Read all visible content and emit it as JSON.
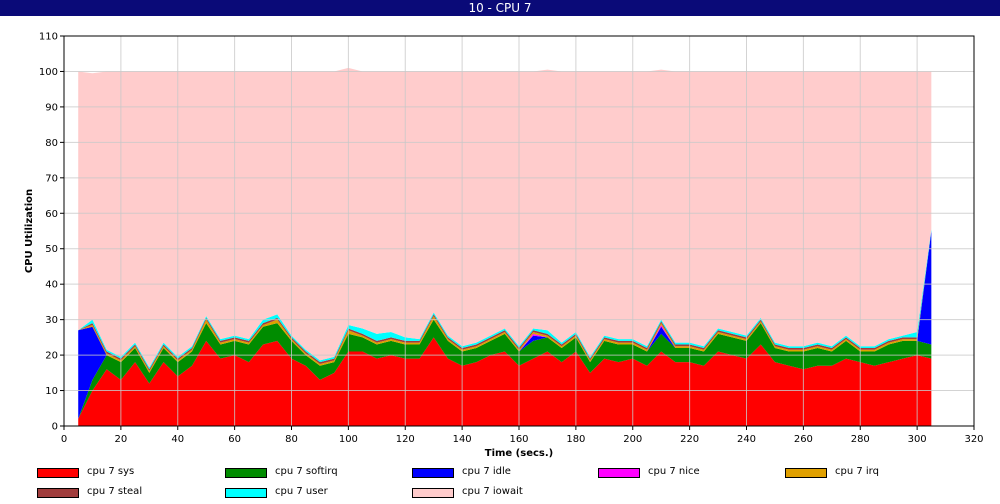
{
  "window": {
    "title": "10 - CPU 7"
  },
  "chart_data": {
    "type": "area",
    "stacked": true,
    "title": "10 - CPU 7",
    "xlabel": "Time (secs.)",
    "ylabel": "CPU Utilization",
    "xlim": [
      0,
      320
    ],
    "ylim": [
      0,
      110
    ],
    "xticks": [
      0,
      20,
      40,
      60,
      80,
      100,
      120,
      140,
      160,
      180,
      200,
      220,
      240,
      260,
      280,
      300,
      320
    ],
    "yticks": [
      0,
      10,
      20,
      30,
      40,
      50,
      60,
      70,
      80,
      90,
      100,
      110
    ],
    "grid": true,
    "legend_position": "bottom",
    "x": [
      5,
      10,
      15,
      20,
      25,
      30,
      35,
      40,
      45,
      50,
      55,
      60,
      65,
      70,
      75,
      80,
      85,
      90,
      95,
      100,
      105,
      110,
      115,
      120,
      125,
      130,
      135,
      140,
      145,
      150,
      155,
      160,
      165,
      170,
      175,
      180,
      185,
      190,
      195,
      200,
      205,
      210,
      215,
      220,
      225,
      230,
      235,
      240,
      245,
      250,
      255,
      260,
      265,
      270,
      275,
      280,
      285,
      290,
      295,
      300,
      305
    ],
    "series": [
      {
        "name": "cpu 7 sys",
        "color": "#ff0000",
        "values": [
          2,
          10,
          16,
          13,
          18,
          12,
          18,
          14,
          17,
          24,
          19,
          20,
          18,
          23,
          24,
          19,
          17,
          13,
          15,
          21,
          21,
          19,
          20,
          19,
          19,
          25,
          19,
          17,
          18,
          20,
          21,
          17,
          19,
          21,
          18,
          21,
          15,
          19,
          18,
          19,
          17,
          21,
          18,
          18,
          17,
          21,
          20,
          19,
          23,
          18,
          17,
          16,
          17,
          17,
          19,
          18,
          17,
          18,
          19,
          20,
          19
        ]
      },
      {
        "name": "cpu 7 softirq",
        "color": "#008c00",
        "values": [
          0,
          3,
          4,
          5,
          4,
          3,
          4,
          4,
          4,
          5,
          4,
          4,
          5,
          5,
          5,
          5,
          3,
          4,
          3,
          5,
          4,
          4,
          4,
          4,
          4,
          5,
          5,
          4,
          4,
          4,
          5,
          4,
          5,
          4,
          4,
          4,
          3,
          5,
          5,
          4,
          4,
          5,
          4,
          4,
          4,
          5,
          5,
          5,
          6,
          4,
          4,
          5,
          5,
          4,
          5,
          3,
          4,
          5,
          5,
          4,
          4
        ]
      },
      {
        "name": "cpu 7 idle",
        "color": "#0000ff",
        "values": [
          25,
          15,
          0,
          0,
          0,
          0,
          0,
          0,
          0,
          0,
          0,
          0,
          0,
          0,
          0,
          0,
          0,
          0,
          0,
          0,
          0,
          0,
          0,
          0,
          0,
          0,
          0,
          0,
          0,
          0,
          0,
          0,
          1.5,
          0,
          0,
          0,
          0,
          0,
          0,
          0,
          0,
          2,
          0,
          0,
          0,
          0,
          0,
          0,
          0,
          0,
          0,
          0,
          0,
          0,
          0,
          0,
          0,
          0,
          0,
          0,
          32
        ]
      },
      {
        "name": "cpu 7 nice",
        "color": "#ff00ff",
        "values": [
          0,
          0,
          0,
          0,
          0,
          0,
          0,
          0,
          0,
          0,
          0,
          0,
          0,
          0,
          0,
          0,
          0,
          0,
          0,
          0,
          0,
          0,
          0,
          0,
          0,
          0,
          0,
          0,
          0,
          0,
          0,
          0,
          0.5,
          0,
          0,
          0,
          0,
          0,
          0,
          0,
          0,
          0.5,
          0,
          0,
          0,
          0,
          0,
          0,
          0,
          0,
          0,
          0,
          0,
          0,
          0,
          0,
          0,
          0,
          0,
          0,
          0
        ]
      },
      {
        "name": "cpu 7 irq",
        "color": "#e0a000",
        "values": [
          0,
          0.5,
          0.5,
          0.5,
          0.5,
          0.5,
          0.5,
          0.5,
          0.5,
          1,
          0.5,
          0.5,
          0.5,
          0.5,
          1,
          0.5,
          0.5,
          0.5,
          0.5,
          1,
          0.5,
          0.5,
          0.5,
          0.5,
          0.5,
          1,
          0.5,
          0.5,
          0.5,
          0.5,
          0.5,
          0.5,
          0.5,
          0.5,
          0.5,
          0.5,
          0.5,
          0.5,
          0.5,
          0.5,
          0.5,
          0.5,
          0.5,
          0.5,
          0.5,
          0.5,
          0.5,
          0.5,
          0.5,
          0.5,
          0.5,
          0.5,
          0.5,
          0.5,
          0.5,
          0.5,
          0.5,
          0.5,
          0.5,
          0.5,
          0
        ]
      },
      {
        "name": "cpu 7 steal",
        "color": "#a03c3c",
        "values": [
          0,
          0.5,
          0.5,
          0.5,
          0.5,
          0.5,
          0.5,
          0.5,
          0.5,
          0.5,
          0.5,
          0.5,
          0.5,
          0.5,
          0.5,
          0.5,
          0.5,
          0.5,
          0.5,
          0.5,
          0.5,
          0.5,
          0.5,
          0.5,
          0.5,
          0.5,
          0.5,
          0.5,
          0.5,
          0.5,
          0.5,
          0.5,
          0.5,
          0.5,
          0.5,
          0.5,
          0.5,
          0.5,
          0.5,
          0.5,
          0.5,
          0.5,
          0.5,
          0.5,
          0.5,
          0.5,
          0.5,
          0.5,
          0.5,
          0.5,
          0.5,
          0.5,
          0.5,
          0.5,
          0.5,
          0.5,
          0.5,
          0.5,
          0.5,
          0.5,
          0
        ]
      },
      {
        "name": "cpu 7 user",
        "color": "#00ffff",
        "values": [
          0,
          1,
          0.5,
          0.5,
          0.5,
          0.5,
          0.5,
          0.5,
          0.5,
          0.5,
          0.5,
          0.5,
          0.5,
          1,
          1,
          0.5,
          0.5,
          0.5,
          0.5,
          1,
          1.5,
          2,
          1.5,
          1,
          0.5,
          0.5,
          0.5,
          0.5,
          0.5,
          0.5,
          0.5,
          0.5,
          0.5,
          1,
          0.5,
          0.5,
          0.5,
          0.5,
          0.5,
          0.5,
          0.5,
          0.5,
          0.5,
          0.5,
          0.5,
          0.5,
          0.5,
          0.5,
          0.5,
          0.5,
          0.5,
          0.5,
          0.5,
          0.5,
          0.5,
          0.5,
          0.5,
          0.5,
          0.5,
          1.5,
          0.5
        ]
      },
      {
        "name": "cpu 7 iowait",
        "color": "#ffcccc",
        "values": [
          73,
          69.5,
          78.5,
          80.5,
          76.5,
          83.5,
          76.5,
          80.5,
          77.5,
          69,
          75.5,
          74.5,
          75.5,
          70,
          68.5,
          74.5,
          78.5,
          81.5,
          80.5,
          72.5,
          72.5,
          74,
          73.5,
          75,
          75.5,
          68,
          74.5,
          77.5,
          76.5,
          74.5,
          72.5,
          77.5,
          72.5,
          73.5,
          76.5,
          73.5,
          80.5,
          74.5,
          75.5,
          75.5,
          77.5,
          70.5,
          76.5,
          76.5,
          77.5,
          72.5,
          73.5,
          74.5,
          69.5,
          76.5,
          77.5,
          77.5,
          76.5,
          77.5,
          74.5,
          77.5,
          77.5,
          75.5,
          74.5,
          73.5,
          44.5
        ]
      }
    ]
  }
}
